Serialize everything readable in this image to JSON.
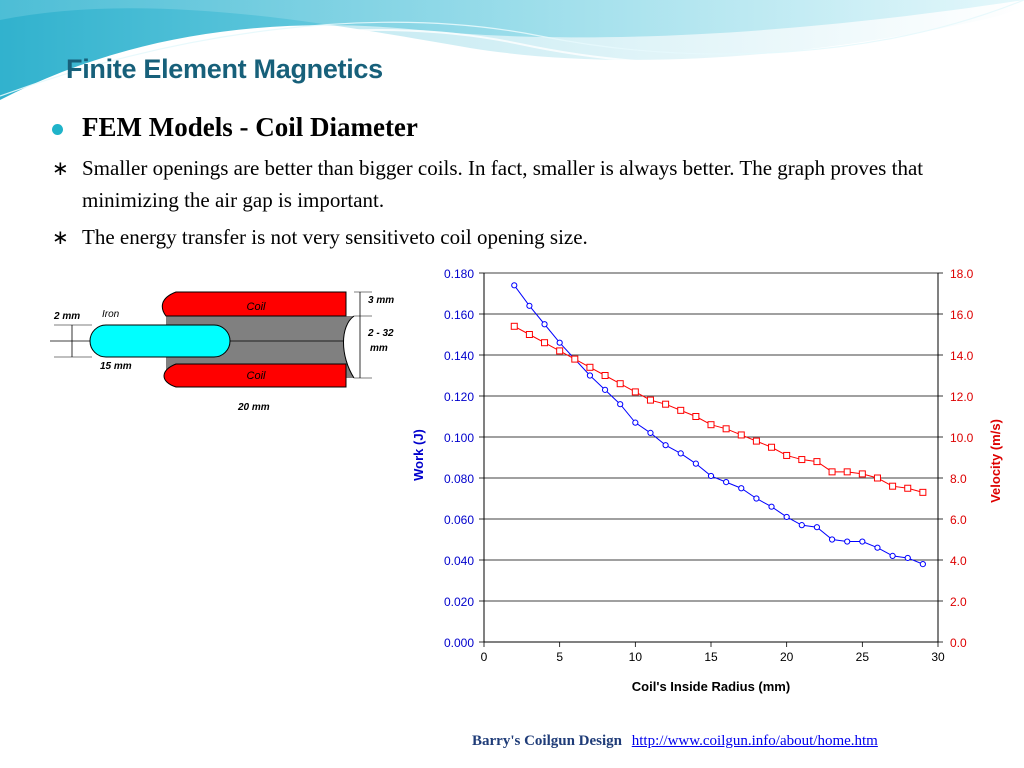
{
  "slide": {
    "title": "Finite Element Magnetics",
    "bullet": "FEM Models - Coil Diameter",
    "points": [
      "Smaller openings are better than bigger coils. In fact, smaller is always better. The graph proves that minimizing the air gap is important.",
      "The energy transfer is not very sensitiveto coil opening size."
    ],
    "star_glyph": "∗",
    "footer_source": "Barry's Coilgun Design",
    "footer_url": "http://www.coilgun.info/about/home.htm"
  },
  "diagram": {
    "coil_top_label": "Coil",
    "coil_bottom_label": "Coil",
    "iron_label": "Iron",
    "gap_label": "2 mm",
    "length_label": "15 mm",
    "coil_length_label": "20 mm",
    "thickness_label": "3 mm",
    "opening_label_1": "2 - 32",
    "opening_label_2": "mm",
    "colors": {
      "coil": "#ff0000",
      "iron": "#00ffff",
      "core": "#808080"
    }
  },
  "chart_data": {
    "type": "line",
    "xlabel": "Coil's Inside Radius (mm)",
    "ylabel": "Work (J)",
    "y2label": "Velocity (m/s)",
    "xlim": [
      0,
      30
    ],
    "ylim": [
      0,
      0.18
    ],
    "y2lim": [
      0,
      18
    ],
    "xticks": [
      "0",
      "5",
      "10",
      "15",
      "20",
      "25",
      "30"
    ],
    "yticks": [
      "0.000",
      "0.020",
      "0.040",
      "0.060",
      "0.080",
      "0.100",
      "0.120",
      "0.140",
      "0.160",
      "0.180"
    ],
    "y2ticks": [
      "0.0",
      "2.0",
      "4.0",
      "6.0",
      "8.0",
      "10.0",
      "12.0",
      "14.0",
      "16.0",
      "18.0"
    ],
    "grid": true,
    "series": [
      {
        "axis": "left",
        "color": "#0000ff",
        "marker": "circle",
        "x": [
          2,
          3,
          4,
          5,
          6,
          7,
          8,
          9,
          10,
          11,
          12,
          13,
          14,
          15,
          16,
          17,
          18,
          19,
          20,
          21,
          22,
          23,
          24,
          25,
          26,
          27,
          28,
          29
        ],
        "values": [
          0.174,
          0.164,
          0.155,
          0.146,
          0.138,
          0.13,
          0.123,
          0.116,
          0.107,
          0.102,
          0.096,
          0.092,
          0.087,
          0.081,
          0.078,
          0.075,
          0.07,
          0.066,
          0.061,
          0.057,
          0.056,
          0.05,
          0.049,
          0.049,
          0.046,
          0.042,
          0.041,
          0.038
        ]
      },
      {
        "axis": "right",
        "color": "#ff0000",
        "marker": "square",
        "x": [
          2,
          3,
          4,
          5,
          6,
          7,
          8,
          9,
          10,
          11,
          12,
          13,
          14,
          15,
          16,
          17,
          18,
          19,
          20,
          21,
          22,
          23,
          24,
          25,
          26,
          27,
          28,
          29
        ],
        "values": [
          15.4,
          15.0,
          14.6,
          14.2,
          13.8,
          13.4,
          13.0,
          12.6,
          12.2,
          11.8,
          11.6,
          11.3,
          11.0,
          10.6,
          10.4,
          10.1,
          9.8,
          9.5,
          9.1,
          8.9,
          8.8,
          8.3,
          8.3,
          8.2,
          8.0,
          7.6,
          7.5,
          7.3
        ]
      }
    ]
  }
}
